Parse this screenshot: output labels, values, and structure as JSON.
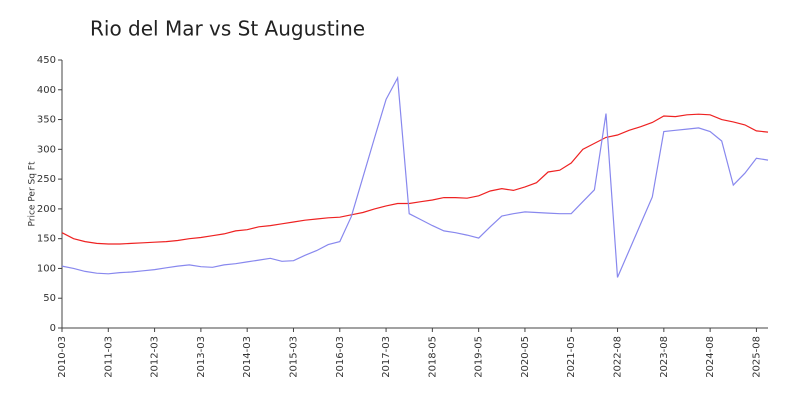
{
  "chart_data": {
    "type": "line",
    "title": "Rio del Mar vs St Augustine",
    "y_label": "Price Per Sq Ft",
    "categories": [
      "2010-03",
      null,
      null,
      null,
      "2011-03",
      null,
      null,
      null,
      "2012-03",
      null,
      null,
      null,
      "2013-03",
      null,
      null,
      null,
      "2014-03",
      null,
      null,
      null,
      "2015-03",
      null,
      null,
      null,
      "2016-03",
      null,
      null,
      null,
      "2017-03",
      null,
      null,
      null,
      "2018-05",
      null,
      null,
      null,
      "2019-05",
      null,
      null,
      null,
      "2020-05",
      null,
      null,
      null,
      "2021-05",
      null,
      null,
      null,
      "2022-08",
      null,
      null,
      null,
      "2023-08",
      null,
      null,
      null,
      "2024-08",
      null,
      null,
      null,
      "2025-08",
      null
    ],
    "series": [
      {
        "color": "#ee2222",
        "values": [
          160,
          150,
          145,
          142,
          141,
          141,
          142,
          143,
          144,
          145,
          147,
          150,
          152,
          155,
          158,
          163,
          165,
          170,
          172,
          175,
          178,
          181,
          183,
          185,
          186,
          190,
          194,
          200,
          205,
          209,
          209,
          212,
          215,
          219,
          219,
          218,
          222,
          230,
          234,
          231,
          237,
          244,
          262,
          265,
          277,
          300,
          310,
          320,
          324,
          332,
          338,
          345,
          356,
          355,
          358,
          359,
          358,
          350,
          346,
          341,
          331,
          329
        ]
      },
      {
        "color": "#8888ee",
        "values": [
          104,
          100,
          95,
          92,
          91,
          93,
          94,
          96,
          98,
          101,
          104,
          106,
          103,
          102,
          106,
          108,
          111,
          114,
          117,
          112,
          113,
          122,
          130,
          140,
          145,
          187,
          253,
          319,
          384,
          420,
          192,
          182,
          172,
          163,
          160,
          156,
          151,
          170,
          188,
          192,
          195,
          194,
          193,
          192,
          192,
          212,
          232,
          360,
          85,
          130,
          175,
          220,
          330,
          332,
          334,
          336,
          330,
          314,
          240,
          260,
          285,
          282
        ]
      }
    ],
    "ylim": [
      0,
      450
    ],
    "yticks": [
      0,
      50,
      100,
      150,
      200,
      250,
      300,
      350,
      400,
      450
    ]
  }
}
